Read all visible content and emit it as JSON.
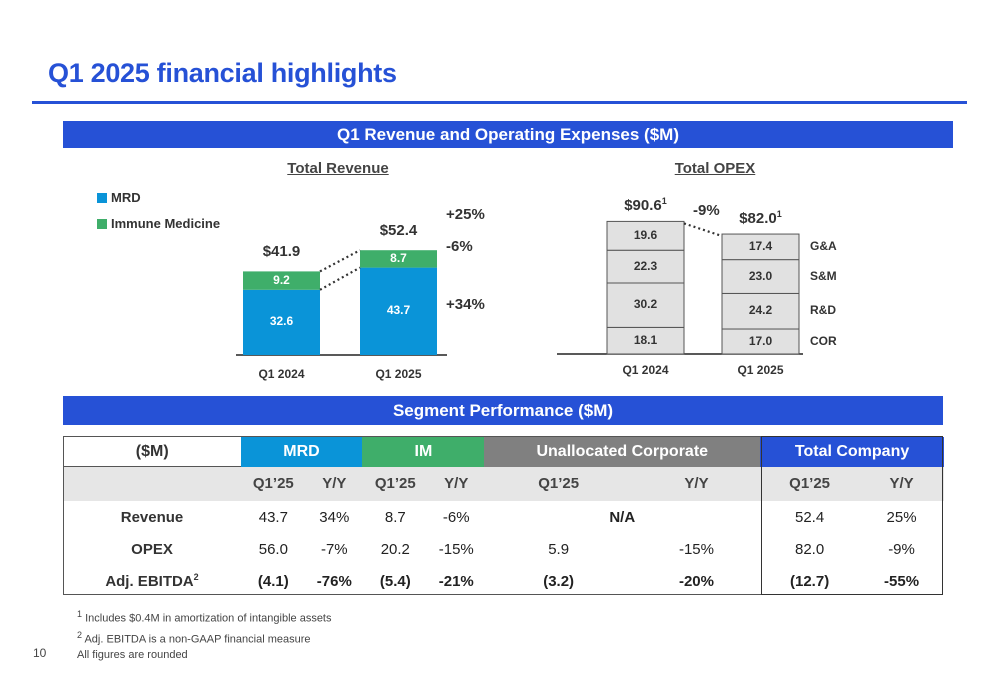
{
  "title": "Q1 2025 financial highlights",
  "section_revenue_opex": "Q1 Revenue and Operating Expenses ($M)",
  "section_segment": "Segment Performance ($M)",
  "colors": {
    "brand_blue": "#2651d6",
    "mrd": "#0a94d8",
    "immune": "#3fae6a",
    "opex_fill": "#e1e1e1"
  },
  "chart_data": [
    {
      "type": "bar",
      "title": "Total Revenue",
      "categories": [
        "Q1 2024",
        "Q1 2025"
      ],
      "series": [
        {
          "name": "MRD",
          "values": [
            32.6,
            43.7
          ]
        },
        {
          "name": "Immune Medicine",
          "values": [
            9.2,
            8.7
          ]
        }
      ],
      "totals": [
        "$41.9",
        "$52.4"
      ],
      "changes": [
        {
          "label": "+25%",
          "for": "Total"
        },
        {
          "label": "-6%",
          "for": "Immune Medicine"
        },
        {
          "label": "+34%",
          "for": "MRD"
        }
      ]
    },
    {
      "type": "bar",
      "title": "Total OPEX",
      "categories": [
        "Q1 2024",
        "Q1 2025"
      ],
      "series": [
        {
          "name": "COR",
          "values": [
            18.1,
            17.0
          ]
        },
        {
          "name": "R&D",
          "values": [
            30.2,
            24.2
          ]
        },
        {
          "name": "S&M",
          "values": [
            22.3,
            23.0
          ]
        },
        {
          "name": "G&A",
          "values": [
            19.6,
            17.4
          ]
        }
      ],
      "totals": [
        "$90.6",
        "$82.0"
      ],
      "total_footnote": "1",
      "change": "-9%"
    }
  ],
  "table": {
    "corner": "($M)",
    "groups": [
      {
        "label": "MRD",
        "color": "#0a94d8"
      },
      {
        "label": "IM",
        "color": "#3fae6a"
      },
      {
        "label": "Unallocated Corporate",
        "color": "#808080"
      },
      {
        "label": "Total Company",
        "color": "#2651d6"
      }
    ],
    "sub": [
      "Q1’25",
      "Y/Y",
      "Q1’25",
      "Y/Y",
      "Q1’25",
      "Y/Y",
      "Q1’25",
      "Y/Y"
    ],
    "rows": [
      {
        "label": "Revenue",
        "cells": [
          "43.7",
          "34%",
          "8.7",
          "-6%",
          "N/A",
          "52.4",
          "25%"
        ]
      },
      {
        "label": "OPEX",
        "cells": [
          "56.0",
          "-7%",
          "20.2",
          "-15%",
          "5.9",
          "-15%",
          "82.0",
          "-9%"
        ]
      },
      {
        "label": "Adj. EBITDA",
        "sup": "2",
        "cells": [
          "(4.1)",
          "-76%",
          "(5.4)",
          "-21%",
          "(3.2)",
          "-20%",
          "(12.7)",
          "-55%"
        ]
      }
    ]
  },
  "footnotes": [
    {
      "num": "1",
      "text": "Includes $0.4M in amortization of intangible assets"
    },
    {
      "num": "2",
      "text": "Adj. EBITDA is a non-GAAP financial measure"
    },
    {
      "num": "",
      "text": "All figures are rounded"
    }
  ],
  "page_number": "10"
}
